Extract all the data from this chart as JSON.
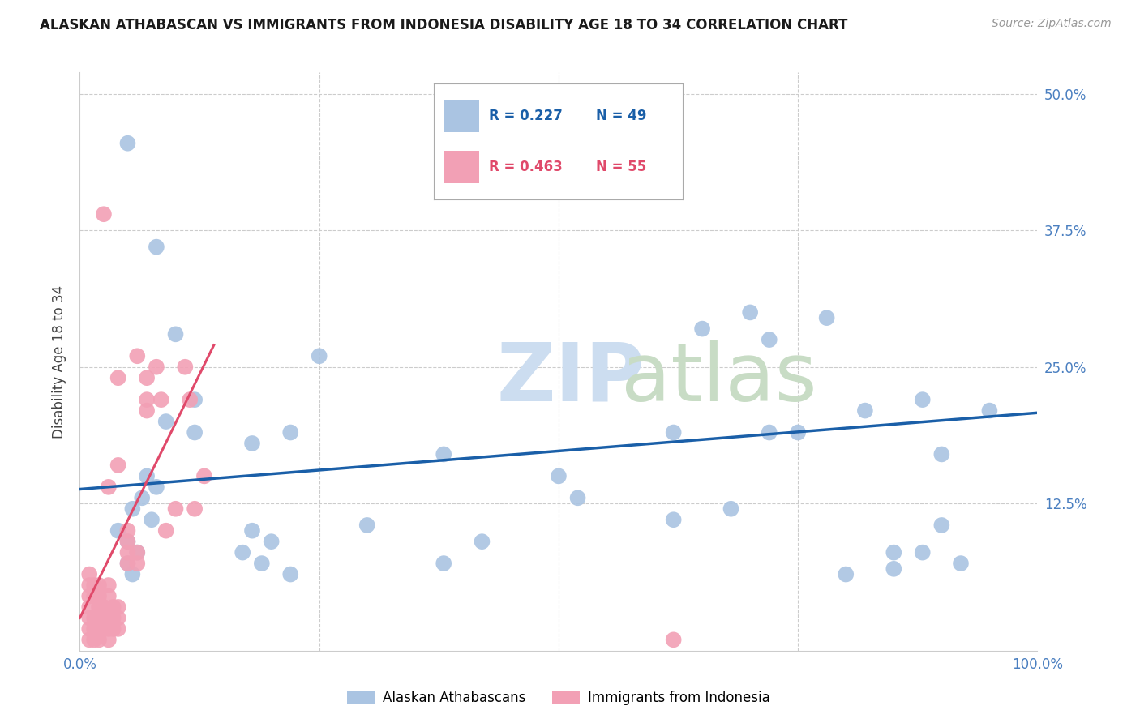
{
  "title": "ALASKAN ATHABASCAN VS IMMIGRANTS FROM INDONESIA DISABILITY AGE 18 TO 34 CORRELATION CHART",
  "source": "Source: ZipAtlas.com",
  "ylabel": "Disability Age 18 to 34",
  "xlim": [
    0,
    1.0
  ],
  "ylim": [
    -0.01,
    0.52
  ],
  "xticks": [
    0.0,
    0.25,
    0.5,
    0.75,
    1.0
  ],
  "xticklabels": [
    "0.0%",
    "",
    "",
    "",
    "100.0%"
  ],
  "yticks": [
    0.0,
    0.125,
    0.25,
    0.375,
    0.5
  ],
  "yticklabels": [
    "",
    "12.5%",
    "25.0%",
    "37.5%",
    "50.0%"
  ],
  "legend_blue_r": "0.227",
  "legend_blue_n": "49",
  "legend_pink_r": "0.463",
  "legend_pink_n": "55",
  "legend_label_blue": "Alaskan Athabascans",
  "legend_label_pink": "Immigrants from Indonesia",
  "blue_color": "#aac4e2",
  "pink_color": "#f2a0b5",
  "blue_line_color": "#1a5fa8",
  "pink_line_color": "#e0496a",
  "blue_scatter_x": [
    0.055,
    0.04,
    0.065,
    0.05,
    0.06,
    0.07,
    0.075,
    0.05,
    0.055,
    0.08,
    0.09,
    0.12,
    0.12,
    0.18,
    0.17,
    0.18,
    0.19,
    0.22,
    0.2,
    0.22,
    0.25,
    0.38,
    0.38,
    0.52,
    0.62,
    0.65,
    0.7,
    0.72,
    0.75,
    0.78,
    0.82,
    0.85,
    0.88,
    0.88,
    0.9,
    0.92,
    0.95,
    0.62,
    0.68,
    0.72,
    0.8,
    0.85,
    0.9,
    0.42,
    0.3,
    0.5,
    0.05,
    0.08,
    0.1
  ],
  "blue_scatter_y": [
    0.12,
    0.1,
    0.13,
    0.09,
    0.08,
    0.15,
    0.11,
    0.07,
    0.06,
    0.14,
    0.2,
    0.19,
    0.22,
    0.18,
    0.08,
    0.1,
    0.07,
    0.19,
    0.09,
    0.06,
    0.26,
    0.17,
    0.07,
    0.13,
    0.19,
    0.285,
    0.3,
    0.275,
    0.19,
    0.295,
    0.21,
    0.08,
    0.22,
    0.08,
    0.17,
    0.07,
    0.21,
    0.11,
    0.12,
    0.19,
    0.06,
    0.065,
    0.105,
    0.09,
    0.105,
    0.15,
    0.455,
    0.36,
    0.28
  ],
  "pink_scatter_x": [
    0.01,
    0.01,
    0.01,
    0.01,
    0.01,
    0.01,
    0.01,
    0.015,
    0.015,
    0.015,
    0.015,
    0.015,
    0.02,
    0.02,
    0.02,
    0.02,
    0.02,
    0.02,
    0.025,
    0.025,
    0.025,
    0.03,
    0.03,
    0.03,
    0.03,
    0.03,
    0.035,
    0.035,
    0.035,
    0.04,
    0.04,
    0.04,
    0.05,
    0.05,
    0.05,
    0.05,
    0.06,
    0.06,
    0.07,
    0.07,
    0.07,
    0.08,
    0.085,
    0.09,
    0.1,
    0.11,
    0.115,
    0.12,
    0.13,
    0.025,
    0.04,
    0.06,
    0.03,
    0.04,
    0.62
  ],
  "pink_scatter_y": [
    0.0,
    0.01,
    0.02,
    0.03,
    0.04,
    0.05,
    0.06,
    0.0,
    0.01,
    0.02,
    0.04,
    0.05,
    0.0,
    0.01,
    0.02,
    0.03,
    0.04,
    0.05,
    0.01,
    0.02,
    0.03,
    0.0,
    0.01,
    0.02,
    0.04,
    0.05,
    0.01,
    0.02,
    0.03,
    0.01,
    0.02,
    0.03,
    0.07,
    0.08,
    0.09,
    0.1,
    0.07,
    0.08,
    0.21,
    0.22,
    0.24,
    0.25,
    0.22,
    0.1,
    0.12,
    0.25,
    0.22,
    0.12,
    0.15,
    0.39,
    0.24,
    0.26,
    0.14,
    0.16,
    0.0
  ],
  "blue_trendline_x": [
    0.0,
    1.0
  ],
  "blue_trendline_y": [
    0.138,
    0.208
  ],
  "pink_trendline_x": [
    0.0,
    0.14
  ],
  "pink_trendline_y": [
    0.02,
    0.27
  ],
  "grid_color": "#cccccc",
  "background_color": "#ffffff"
}
